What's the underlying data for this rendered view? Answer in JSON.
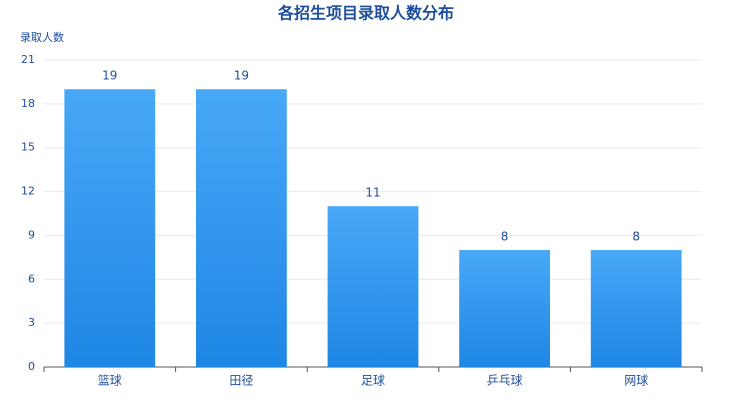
{
  "chart_data": {
    "type": "bar",
    "title": "各招生项目录取人数分布",
    "y_label": "录取人数",
    "categories": [
      "篮球",
      "田径",
      "足球",
      "乒乓球",
      "网球"
    ],
    "values": [
      19,
      19,
      11,
      8,
      8
    ],
    "color": [
      "#48a8f7",
      "#1e86e4"
    ],
    "ylim": [
      0,
      21
    ],
    "yticks": [
      0,
      3,
      6,
      9,
      12,
      15,
      18,
      21
    ],
    "grid": true
  }
}
